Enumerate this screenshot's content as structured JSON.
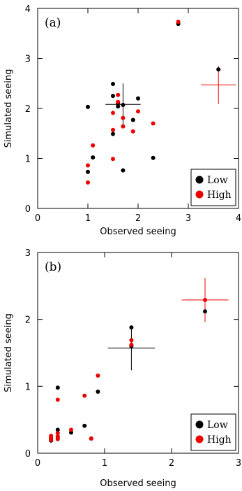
{
  "colors": {
    "low": "#000000",
    "high": "#ee0000"
  },
  "chart_data": [
    {
      "type": "scatter",
      "panel_tag": "(a)",
      "xlabel": "Observed seeing",
      "ylabel": "Simulated seeing",
      "xlim": [
        0,
        4
      ],
      "ylim": [
        0,
        4
      ],
      "xticks": [
        0,
        1,
        2,
        3,
        4
      ],
      "yticks": [
        0,
        1,
        2,
        3,
        4
      ],
      "legend": {
        "position": "bottom-right",
        "entries": [
          "Low",
          "High"
        ]
      },
      "series": [
        {
          "name": "Low",
          "color": "#000000",
          "points": [
            [
              1.0,
              2.03
            ],
            [
              1.0,
              0.73
            ],
            [
              1.1,
              1.02
            ],
            [
              1.5,
              2.49
            ],
            [
              1.5,
              2.25
            ],
            [
              1.5,
              1.49
            ],
            [
              1.6,
              2.1
            ],
            [
              1.6,
              2.04
            ],
            [
              1.7,
              2.07
            ],
            [
              1.7,
              0.76
            ],
            [
              1.9,
              1.77
            ],
            [
              2.0,
              2.2
            ],
            [
              2.3,
              1.01
            ],
            [
              2.8,
              3.69
            ],
            [
              3.6,
              2.78
            ]
          ]
        },
        {
          "name": "High",
          "color": "#ee0000",
          "points": [
            [
              1.0,
              0.52
            ],
            [
              1.0,
              0.86
            ],
            [
              1.1,
              1.26
            ],
            [
              1.5,
              0.99
            ],
            [
              1.5,
              1.57
            ],
            [
              1.5,
              1.91
            ],
            [
              1.6,
              2.27
            ],
            [
              1.6,
              2.13
            ],
            [
              1.7,
              1.64
            ],
            [
              1.7,
              1.81
            ],
            [
              1.9,
              1.54
            ],
            [
              2.0,
              1.94
            ],
            [
              2.3,
              1.7
            ],
            [
              2.8,
              3.73
            ]
          ]
        }
      ],
      "error_bars": [
        {
          "color": "#000000",
          "x": 1.7,
          "y": 2.08,
          "xerr": 0.35,
          "yerr": 0.42
        },
        {
          "color": "#ee0000",
          "x": 3.6,
          "y": 2.47,
          "xerr": 0.35,
          "yerr": 0.38
        }
      ]
    },
    {
      "type": "scatter",
      "panel_tag": "(b)",
      "xlabel": "Observed seeing",
      "ylabel": "Simulated seeing",
      "xlim": [
        0,
        3
      ],
      "ylim": [
        0,
        3
      ],
      "xticks": [
        0,
        1,
        2,
        3
      ],
      "yticks": [
        0,
        1,
        2,
        3
      ],
      "legend": {
        "position": "bottom-right",
        "entries": [
          "Low",
          "High"
        ]
      },
      "series": [
        {
          "name": "Low",
          "color": "#000000",
          "points": [
            [
              0.2,
              0.23
            ],
            [
              0.2,
              0.21
            ],
            [
              0.2,
              0.19
            ],
            [
              0.3,
              0.98
            ],
            [
              0.3,
              0.35
            ],
            [
              0.3,
              0.25
            ],
            [
              0.3,
              0.22
            ],
            [
              0.5,
              0.31
            ],
            [
              0.7,
              0.41
            ],
            [
              0.8,
              0.22
            ],
            [
              0.9,
              0.92
            ],
            [
              1.4,
              1.88
            ],
            [
              1.4,
              1.6
            ],
            [
              2.5,
              2.12
            ]
          ]
        },
        {
          "name": "High",
          "color": "#ee0000",
          "points": [
            [
              0.2,
              0.26
            ],
            [
              0.2,
              0.23
            ],
            [
              0.2,
              0.2
            ],
            [
              0.3,
              0.8
            ],
            [
              0.3,
              0.3
            ],
            [
              0.3,
              0.25
            ],
            [
              0.3,
              0.21
            ],
            [
              0.5,
              0.35
            ],
            [
              0.7,
              0.86
            ],
            [
              0.8,
              0.22
            ],
            [
              0.9,
              1.16
            ],
            [
              1.4,
              1.69
            ],
            [
              1.4,
              1.62
            ],
            [
              2.5,
              2.29
            ]
          ]
        }
      ],
      "error_bars": [
        {
          "color": "#000000",
          "x": 1.4,
          "y": 1.57,
          "xerr": 0.35,
          "yerr": 0.33
        },
        {
          "color": "#ee0000",
          "x": 2.5,
          "y": 2.29,
          "xerr": 0.35,
          "yerr": 0.33
        }
      ]
    }
  ]
}
